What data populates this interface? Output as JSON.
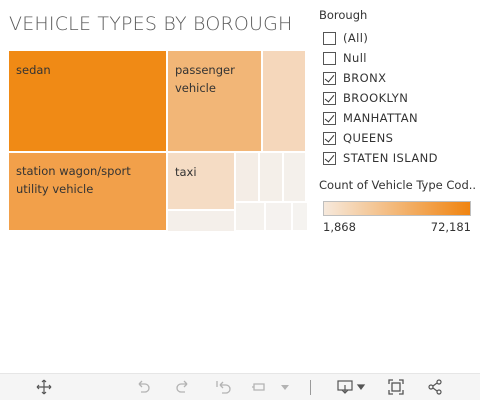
{
  "viz": {
    "title": "VEHICLE TYPES BY BOROUGH"
  },
  "treemap": {
    "tiles": [
      {
        "label": "sedan",
        "color": "#f08a15"
      },
      {
        "label": "passenger vehicle",
        "color": "#f2b677"
      },
      {
        "label": "",
        "color": "#f5d7bb"
      },
      {
        "label": "station wagon/sport utility vehicle",
        "color": "#f2a04a"
      },
      {
        "label": "taxi",
        "color": "#f5dcc4"
      },
      {
        "label": "",
        "color": "#f4ede6"
      },
      {
        "label": "",
        "color": "#f4efe9"
      },
      {
        "label": "",
        "color": "#f4f0eb"
      },
      {
        "label": "",
        "color": "#f4efea"
      },
      {
        "label": "",
        "color": "#f5f2ee"
      },
      {
        "label": "",
        "color": "#f5f2ef"
      },
      {
        "label": "",
        "color": "#f5f3f0"
      }
    ]
  },
  "filter": {
    "title": "Borough",
    "items": [
      {
        "label": "(All)",
        "checked": false
      },
      {
        "label": "Null",
        "checked": false
      },
      {
        "label": "BRONX",
        "checked": true
      },
      {
        "label": "BROOKLYN",
        "checked": true
      },
      {
        "label": "MANHATTAN",
        "checked": true
      },
      {
        "label": "QUEENS",
        "checked": true
      },
      {
        "label": "STATEN ISLAND",
        "checked": true
      }
    ]
  },
  "legend": {
    "title": "Count of Vehicle Type Cod...",
    "min_label": "1,868",
    "max_label": "72,181",
    "color_low": "#f6e9dc",
    "color_high": "#f08410"
  },
  "toolbar": {
    "icons": [
      "move-icon",
      "undo-icon",
      "redo-icon",
      "revert-icon",
      "refresh-icon",
      "pause-dropdown-icon",
      "download-icon",
      "fullscreen-icon",
      "share-icon"
    ]
  }
}
